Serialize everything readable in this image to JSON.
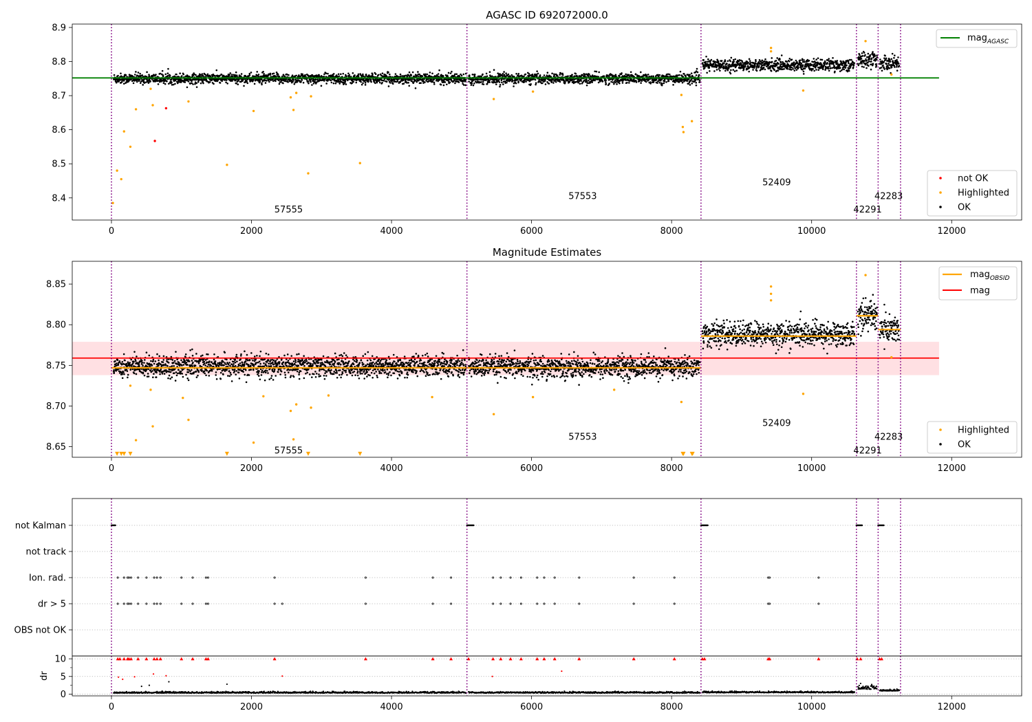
{
  "chart_data": [
    {
      "type": "scatter",
      "title": "AGASC ID 692072000.0",
      "xlim": [
        -560,
        13000
      ],
      "ylim": [
        8.335,
        8.91
      ],
      "xticks": [
        0,
        2000,
        4000,
        6000,
        8000,
        10000,
        12000
      ],
      "yticks": [
        8.4,
        8.5,
        8.6,
        8.7,
        8.8,
        8.9
      ],
      "vlines": [
        0,
        5077,
        8420,
        10640,
        10950,
        11270
      ],
      "obsids": [
        {
          "label": "57555",
          "x": 2530,
          "y": 8.365
        },
        {
          "label": "57553",
          "x": 6730,
          "y": 8.405
        },
        {
          "label": "52409",
          "x": 9500,
          "y": 8.445
        },
        {
          "label": "42291",
          "x": 10800,
          "y": 8.365
        },
        {
          "label": "42283",
          "x": 11100,
          "y": 8.405
        }
      ],
      "hlines": [
        {
          "name": "mag",
          "sub": "AGASC",
          "value": 8.752,
          "x": [
            -560,
            11820
          ],
          "color": "#008000"
        }
      ],
      "segments": [
        {
          "x": [
            30,
            5060
          ],
          "mean": 8.75,
          "spread": 0.0075
        },
        {
          "x": [
            5100,
            8400
          ],
          "mean": 8.75,
          "spread": 0.0075
        },
        {
          "x": [
            8440,
            10610
          ],
          "mean": 8.79,
          "spread": 0.0085
        },
        {
          "x": [
            10660,
            10930
          ],
          "mean": 8.805,
          "spread": 0.012
        },
        {
          "x": [
            10970,
            11250
          ],
          "mean": 8.795,
          "spread": 0.01
        }
      ],
      "highlighted": [
        [
          20,
          8.385
        ],
        [
          80,
          8.48
        ],
        [
          140,
          8.455
        ],
        [
          180,
          8.595
        ],
        [
          270,
          8.55
        ],
        [
          350,
          8.66
        ],
        [
          560,
          8.72
        ],
        [
          590,
          8.672
        ],
        [
          1100,
          8.683
        ],
        [
          1650,
          8.497
        ],
        [
          2030,
          8.655
        ],
        [
          2560,
          8.695
        ],
        [
          2600,
          8.658
        ],
        [
          2640,
          8.708
        ],
        [
          2810,
          8.472
        ],
        [
          2850,
          8.698
        ],
        [
          3550,
          8.502
        ],
        [
          5460,
          8.69
        ],
        [
          6020,
          8.712
        ],
        [
          8160,
          8.608
        ],
        [
          8170,
          8.593
        ],
        [
          8140,
          8.702
        ],
        [
          8290,
          8.625
        ],
        [
          9420,
          8.84
        ],
        [
          9420,
          8.83
        ],
        [
          9880,
          8.715
        ],
        [
          10770,
          8.86
        ],
        [
          11140,
          8.762
        ]
      ],
      "notok": [
        [
          780,
          8.663
        ],
        [
          620,
          8.567
        ]
      ],
      "legend": {
        "placement": "lower right",
        "entries": [
          "not OK",
          "Highlighted",
          "OK"
        ]
      }
    },
    {
      "type": "scatter",
      "title": "Magnitude Estimates",
      "xlim": [
        -560,
        13000
      ],
      "ylim": [
        8.637,
        8.878
      ],
      "xticks": [
        0,
        2000,
        4000,
        6000,
        8000,
        10000,
        12000
      ],
      "yticks": [
        8.65,
        8.7,
        8.75,
        8.8,
        8.85
      ],
      "vlines": [
        0,
        5077,
        8420,
        10640,
        10950,
        11270
      ],
      "obsids": [
        {
          "label": "57555",
          "x": 2530,
          "y": 8.645
        },
        {
          "label": "57553",
          "x": 6730,
          "y": 8.662
        },
        {
          "label": "52409",
          "x": 9500,
          "y": 8.679
        },
        {
          "label": "42291",
          "x": 10800,
          "y": 8.645
        },
        {
          "label": "42283",
          "x": 11100,
          "y": 8.662
        }
      ],
      "hlines": [
        {
          "name": "mag",
          "value": 8.759,
          "x": [
            -560,
            11820
          ],
          "color": "#ff0000"
        }
      ],
      "band": {
        "y": [
          8.738,
          8.779
        ],
        "x": [
          -560,
          11820
        ],
        "color": "#ffe0e3"
      },
      "obsid_means": [
        {
          "x": [
            0,
            5077
          ],
          "value": 8.747
        },
        {
          "x": [
            5077,
            8420
          ],
          "value": 8.747
        },
        {
          "x": [
            8420,
            10640
          ],
          "value": 8.786
        },
        {
          "x": [
            10640,
            10950
          ],
          "value": 8.811
        },
        {
          "x": [
            10950,
            11270
          ],
          "value": 8.794
        }
      ],
      "obsid_mean_name": "mag",
      "obsid_mean_sub": "OBSID",
      "segments": [
        {
          "x": [
            30,
            5060
          ],
          "mean": 8.749,
          "spread": 0.0065
        },
        {
          "x": [
            5100,
            8400
          ],
          "mean": 8.748,
          "spread": 0.0065
        },
        {
          "x": [
            8440,
            10610
          ],
          "mean": 8.788,
          "spread": 0.0075
        },
        {
          "x": [
            10660,
            10930
          ],
          "mean": 8.812,
          "spread": 0.01
        },
        {
          "x": [
            10970,
            11250
          ],
          "mean": 8.795,
          "spread": 0.009
        }
      ],
      "highlighted": [
        [
          270,
          8.725
        ],
        [
          350,
          8.658
        ],
        [
          560,
          8.72
        ],
        [
          590,
          8.675
        ],
        [
          1020,
          8.71
        ],
        [
          1100,
          8.683
        ],
        [
          2030,
          8.655
        ],
        [
          2170,
          8.712
        ],
        [
          2560,
          8.694
        ],
        [
          2600,
          8.659
        ],
        [
          2640,
          8.702
        ],
        [
          2850,
          8.698
        ],
        [
          3100,
          8.713
        ],
        [
          4580,
          8.711
        ],
        [
          5460,
          8.69
        ],
        [
          6020,
          8.711
        ],
        [
          7180,
          8.72
        ],
        [
          8140,
          8.705
        ],
        [
          9420,
          8.847
        ],
        [
          9420,
          8.838
        ],
        [
          9420,
          8.83
        ],
        [
          9880,
          8.715
        ],
        [
          10770,
          8.861
        ],
        [
          11140,
          8.76
        ]
      ],
      "offscale": [
        80,
        140,
        180,
        270,
        1650,
        2810,
        3550,
        8160,
        8170,
        8290,
        8300
      ],
      "legend": {
        "placement": "lower right",
        "entries": [
          "Highlighted",
          "OK"
        ]
      }
    },
    {
      "type": "scatter",
      "xlim": [
        -560,
        13000
      ],
      "xticks": [
        0,
        2000,
        4000,
        6000,
        8000,
        10000,
        12000
      ],
      "vlines": [
        0,
        5077,
        8420,
        10640,
        10950,
        11270
      ],
      "flag_rows": [
        "not Kalman",
        "not track",
        "Ion. rad.",
        "dr > 5",
        "OBS not OK"
      ],
      "flag_points": {
        "not Kalman": [
          [
            0,
            60
          ],
          [
            5077,
            5180
          ],
          [
            8420,
            8520
          ],
          [
            10640,
            10720
          ],
          [
            10950,
            11030
          ]
        ],
        "not track": [],
        "Ion. rad.": [
          90,
          180,
          230,
          250,
          280,
          380,
          500,
          610,
          650,
          700,
          1000,
          1160,
          1350,
          1380,
          2330,
          3630,
          4590,
          4850,
          5450,
          5560,
          5700,
          5850,
          6080,
          6180,
          6330,
          6680,
          7460,
          8040,
          9380,
          9400,
          10100
        ],
        "dr > 5": [
          90,
          180,
          230,
          250,
          280,
          380,
          500,
          610,
          650,
          700,
          1000,
          1160,
          1350,
          1380,
          2330,
          2440,
          3630,
          4590,
          4850,
          5450,
          5560,
          5700,
          5850,
          6080,
          6180,
          6330,
          6680,
          7460,
          8040,
          9380,
          9400,
          10100
        ],
        "OBS not OK": []
      },
      "dr_ylabel": "dr",
      "dr_ylim": [
        -0.5,
        10.8
      ],
      "dr_yticks": [
        0,
        5,
        10
      ],
      "dr_clipped_at": 10,
      "dr_high": [
        90,
        120,
        180,
        230,
        250,
        280,
        380,
        500,
        610,
        650,
        700,
        1000,
        1160,
        1350,
        1380,
        2330,
        3630,
        4590,
        4850,
        5100,
        5450,
        5560,
        5700,
        5850,
        6080,
        6180,
        6330,
        6680,
        7460,
        8040,
        8440,
        8470,
        9380,
        9400,
        10100,
        10650,
        10700,
        10970,
        11000
      ],
      "dr_scatter": [
        [
          100,
          4.8
        ],
        [
          160,
          4.2
        ],
        [
          330,
          4.9
        ],
        [
          430,
          2.2
        ],
        [
          540,
          2.5
        ],
        [
          600,
          5.7
        ],
        [
          780,
          5.2
        ],
        [
          820,
          3.5
        ],
        [
          1650,
          2.8
        ],
        [
          2440,
          5.1
        ],
        [
          5440,
          5.0
        ],
        [
          6430,
          6.5
        ]
      ],
      "dr_segments": [
        {
          "x": [
            30,
            5060
          ],
          "base": 0.3
        },
        {
          "x": [
            5100,
            8400
          ],
          "base": 0.3
        },
        {
          "x": [
            8440,
            10610
          ],
          "base": 0.4
        },
        {
          "x": [
            10660,
            10930
          ],
          "base": 1.4
        },
        {
          "x": [
            10970,
            11250
          ],
          "base": 0.9
        }
      ]
    }
  ]
}
